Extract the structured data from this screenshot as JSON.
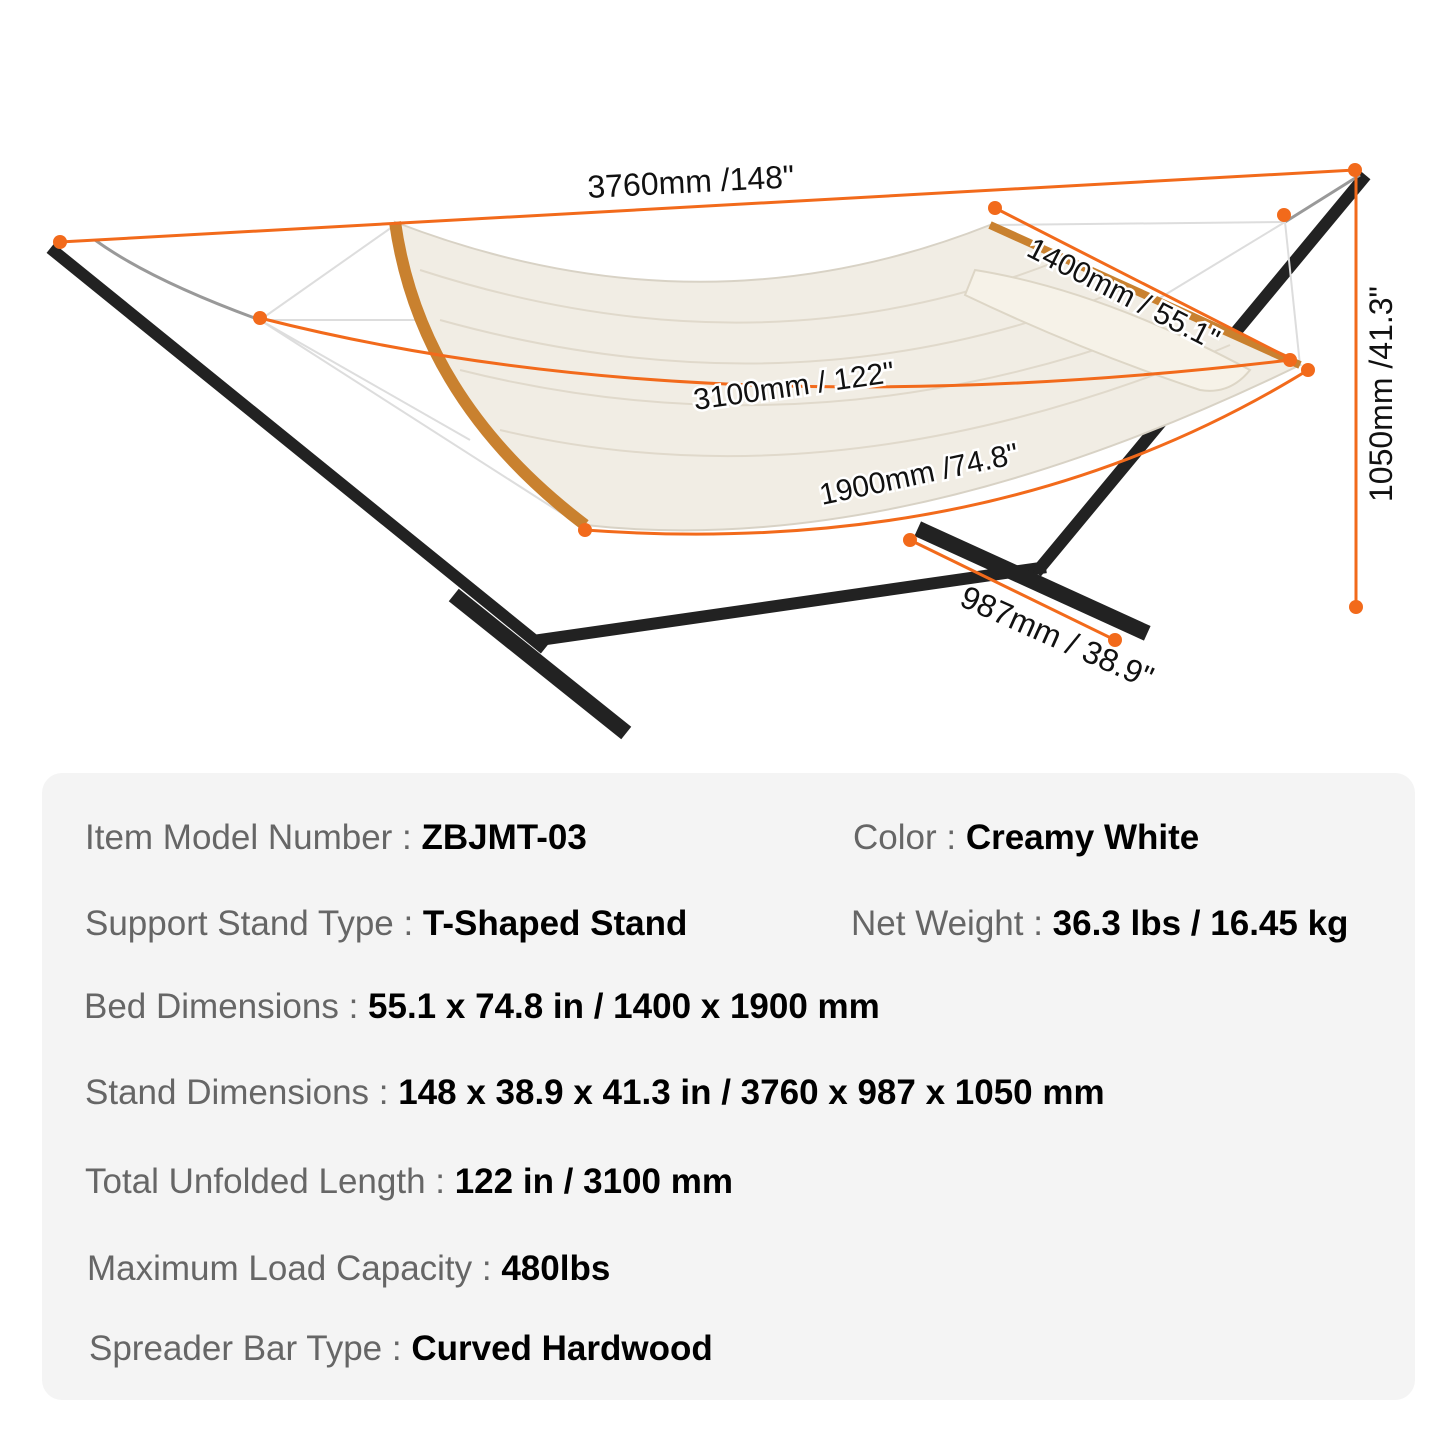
{
  "dimensions": {
    "overall_length": "3760mm /148\"",
    "unfolded_length": "3100mm / 122\"",
    "bed_length": "1900mm /74.8\"",
    "bed_width": "1400mm / 55.1\"",
    "height": "1050mm /41.3\"",
    "base_width": "987mm / 38.9\""
  },
  "colors": {
    "dimension_line": "#f26a1b",
    "frame": "#222222",
    "fabric": "#f1ede4",
    "spreader_bar": "#c9812f",
    "panel_bg": "#f4f4f4"
  },
  "specs": [
    {
      "label": "Item Model Number : ",
      "value": "ZBJMT-03"
    },
    {
      "label": "Color : ",
      "value": "Creamy White"
    },
    {
      "label": "Support Stand Type : ",
      "value": "T-Shaped Stand"
    },
    {
      "label": "Net Weight :  ",
      "value": "36.3 lbs / 16.45 kg"
    },
    {
      "label": "Bed Dimensions : ",
      "value": "55.1 x 74.8 in / 1400 x 1900 mm"
    },
    {
      "label": "Stand Dimensions : ",
      "value": "148 x 38.9 x 41.3 in / 3760 x 987 x 1050 mm"
    },
    {
      "label": "Total Unfolded Length : ",
      "value": "122 in / 3100 mm"
    },
    {
      "label": "Maximum Load Capacity : ",
      "value": "480lbs"
    },
    {
      "label": "Spreader Bar Type : ",
      "value": "Curved Hardwood"
    }
  ]
}
